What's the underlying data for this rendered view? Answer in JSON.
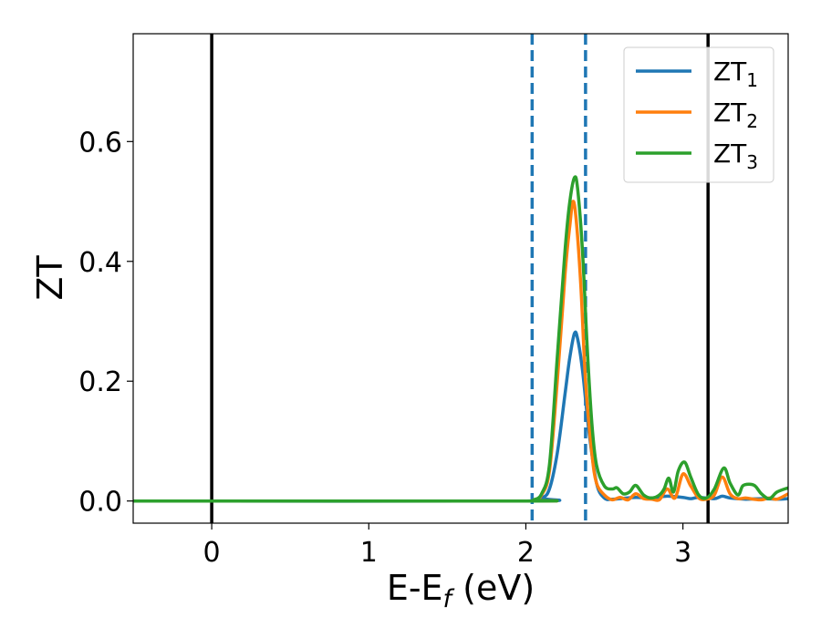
{
  "chart_data": {
    "type": "line",
    "xlabel": {
      "main": "E-E",
      "sub": "f",
      "suffix": " (eV)"
    },
    "ylabel": "ZT",
    "xlim": [
      -0.5,
      3.67
    ],
    "ylim": [
      -0.037,
      0.78
    ],
    "x_ticks": [
      0,
      1,
      2,
      3
    ],
    "x_tick_labels": [
      "0",
      "1",
      "2",
      "3"
    ],
    "y_ticks": [
      0.0,
      0.2,
      0.4,
      0.6
    ],
    "y_tick_labels": [
      "0.0",
      "0.2",
      "0.4",
      "0.6"
    ],
    "grid": false,
    "legend_position": "top-right",
    "vlines_solid": [
      0,
      3.16
    ],
    "vlines_dashed": [
      2.04,
      2.38
    ],
    "vline_solid_color": "#000000",
    "vline_dashed_color": "#1f77b4",
    "series": [
      {
        "name": "ZT",
        "sub": "1",
        "color": "#1f77b4",
        "x": [
          -0.5,
          2.0,
          2.1,
          2.15,
          2.2,
          2.25,
          2.28,
          2.31,
          2.33,
          2.36,
          2.4,
          2.45,
          2.5,
          2.55,
          2.6,
          2.7,
          2.8,
          2.9,
          3.0,
          3.05,
          3.1,
          3.2,
          3.25,
          3.3,
          3.4,
          3.5,
          3.6,
          3.67
        ],
        "y": [
          0,
          0,
          0.005,
          0.02,
          0.08,
          0.18,
          0.24,
          0.28,
          0.27,
          0.22,
          0.12,
          0.03,
          0.005,
          0.003,
          0.004,
          0.006,
          0.005,
          0.008,
          0.006,
          0.004,
          0.006,
          0.004,
          0.008,
          0.005,
          0.003,
          0.004,
          0.003,
          0.004
        ]
      },
      {
        "name": "ZT",
        "sub": "2",
        "color": "#ff7f0e",
        "x": [
          -0.5,
          2.0,
          2.05,
          2.1,
          2.15,
          2.2,
          2.25,
          2.28,
          2.3,
          2.32,
          2.35,
          2.38,
          2.42,
          2.45,
          2.5,
          2.55,
          2.6,
          2.65,
          2.7,
          2.75,
          2.8,
          2.85,
          2.9,
          2.95,
          3.0,
          3.05,
          3.1,
          3.15,
          3.2,
          3.25,
          3.3,
          3.35,
          3.4,
          3.45,
          3.5,
          3.55,
          3.6,
          3.67
        ],
        "y": [
          0,
          0,
          0.002,
          0.01,
          0.05,
          0.2,
          0.38,
          0.46,
          0.5,
          0.47,
          0.36,
          0.2,
          0.08,
          0.03,
          0.01,
          0.002,
          0.006,
          0.002,
          0.012,
          0.004,
          0.003,
          0.002,
          0.02,
          0.005,
          0.045,
          0.025,
          0.005,
          0.003,
          0.01,
          0.04,
          0.012,
          0.004,
          0.005,
          0.003,
          0.002,
          0.005,
          0.003,
          0.012
        ]
      },
      {
        "name": "ZT",
        "sub": "3",
        "color": "#2ca02c",
        "x": [
          -0.5,
          2.0,
          2.05,
          2.1,
          2.15,
          2.2,
          2.25,
          2.28,
          2.31,
          2.33,
          2.36,
          2.39,
          2.42,
          2.45,
          2.5,
          2.55,
          2.58,
          2.62,
          2.66,
          2.7,
          2.75,
          2.8,
          2.85,
          2.88,
          2.91,
          2.94,
          2.97,
          3.01,
          3.05,
          3.1,
          3.15,
          3.2,
          3.26,
          3.3,
          3.35,
          3.38,
          3.42,
          3.46,
          3.5,
          3.55,
          3.6,
          3.67
        ],
        "y": [
          0,
          0,
          0.002,
          0.012,
          0.06,
          0.24,
          0.42,
          0.5,
          0.54,
          0.52,
          0.42,
          0.26,
          0.13,
          0.06,
          0.025,
          0.02,
          0.022,
          0.012,
          0.015,
          0.026,
          0.01,
          0.005,
          0.01,
          0.02,
          0.038,
          0.015,
          0.05,
          0.065,
          0.04,
          0.01,
          0.005,
          0.02,
          0.055,
          0.03,
          0.01,
          0.025,
          0.028,
          0.025,
          0.012,
          0.004,
          0.015,
          0.022
        ]
      }
    ]
  }
}
